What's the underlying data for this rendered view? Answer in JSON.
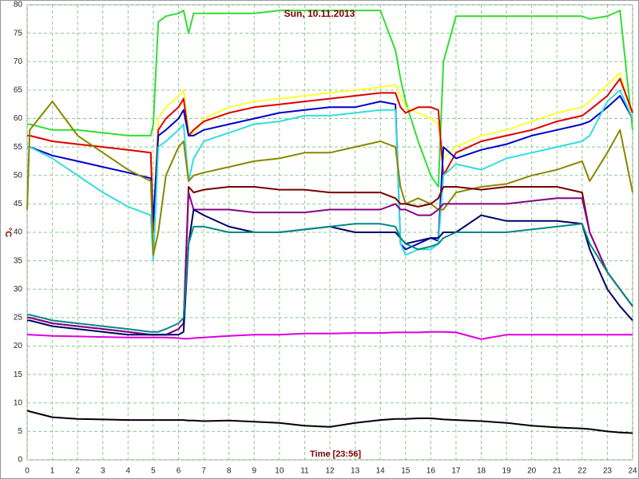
{
  "chart_data": {
    "type": "line",
    "title": "Sun, 10.11.2013",
    "xlabel": "Time [23:56]",
    "ylabel": "°C",
    "xlim": [
      0,
      24
    ],
    "ylim": [
      0,
      80
    ],
    "xticks": [
      0,
      1,
      2,
      3,
      4,
      5,
      6,
      7,
      8,
      9,
      10,
      11,
      12,
      13,
      14,
      15,
      16,
      17,
      18,
      19,
      20,
      21,
      22,
      23,
      24
    ],
    "yticks": [
      0,
      5,
      10,
      15,
      20,
      25,
      30,
      35,
      40,
      45,
      50,
      55,
      60,
      65,
      70,
      75,
      80
    ],
    "grid": true,
    "grid_color": "#8fc88f",
    "x": [
      0,
      0.1,
      1,
      2,
      3,
      4,
      4.9,
      5,
      5.2,
      5.5,
      6,
      6.2,
      6.4,
      6.6,
      7,
      8,
      9,
      10,
      11,
      12,
      13,
      14,
      14.6,
      14.8,
      15,
      15.5,
      16,
      16.3,
      16.5,
      17,
      18,
      19,
      20,
      21,
      22,
      22.3,
      23,
      23.5,
      24
    ],
    "series": [
      {
        "color": "#33dd33",
        "values": [
          59,
          59,
          58,
          58,
          57.5,
          57,
          57,
          59,
          77,
          78,
          78.5,
          79,
          75,
          78.5,
          78.5,
          78.5,
          78.5,
          79,
          79,
          79,
          79,
          79,
          72,
          67,
          63,
          56,
          50,
          48,
          70,
          78,
          78,
          78,
          78,
          78,
          78,
          77.5,
          78,
          79,
          58
        ]
      },
      {
        "color": "#ffff33",
        "values": [
          57,
          57,
          56,
          55.5,
          55,
          54.5,
          54,
          42,
          60,
          62,
          64,
          65,
          58,
          57,
          60,
          62,
          63,
          63.5,
          64,
          64.5,
          65,
          65.5,
          66,
          64,
          62,
          61,
          60,
          59,
          53,
          55,
          57,
          58,
          59.5,
          61,
          62,
          63,
          66,
          68,
          60
        ]
      },
      {
        "color": "#dd0000",
        "values": [
          57,
          57,
          56,
          55.5,
          55,
          54.5,
          54,
          40,
          58,
          60,
          62,
          63.5,
          57,
          58,
          59.5,
          61,
          62,
          62.5,
          63,
          63.5,
          64,
          64.5,
          64.5,
          62,
          61,
          62,
          62,
          61.5,
          50,
          54,
          56,
          57,
          58,
          59.5,
          60.5,
          61.5,
          64,
          67,
          61
        ]
      },
      {
        "color": "#0000cc",
        "values": [
          55,
          55,
          53.5,
          52.5,
          51.5,
          50.5,
          49.5,
          42,
          57,
          58,
          60,
          61.5,
          57,
          57,
          58,
          59,
          60,
          61,
          61.5,
          62,
          62,
          63,
          62.5,
          38,
          37,
          38,
          39,
          38.5,
          55,
          53,
          54.5,
          55.5,
          57,
          58,
          59,
          59.5,
          62,
          64,
          60
        ]
      },
      {
        "color": "#33dddd",
        "values": [
          55,
          55,
          53,
          50,
          47,
          44.5,
          43,
          35,
          55,
          56,
          58,
          59,
          49,
          53,
          56,
          57.5,
          59,
          59.5,
          60.5,
          60.5,
          61,
          61.5,
          61.5,
          38,
          36,
          37,
          37,
          38,
          50,
          52,
          51,
          53,
          54,
          55,
          56,
          57,
          63,
          65,
          60
        ]
      },
      {
        "color": "#888800",
        "values": [
          44,
          58,
          63,
          57,
          54,
          51,
          49,
          36,
          40,
          50,
          55,
          56,
          49,
          50,
          50.5,
          51.5,
          52.5,
          53,
          54,
          54,
          55,
          56,
          55,
          48,
          45,
          46,
          45,
          44,
          44,
          47,
          48,
          48.5,
          50,
          51,
          52.5,
          49,
          54,
          58,
          47
        ]
      },
      {
        "color": "#770000",
        "values": [
          25,
          25,
          24,
          23.5,
          23,
          22.5,
          22,
          22,
          22,
          22,
          23,
          24,
          48,
          47,
          47.5,
          48,
          48,
          47.5,
          47.5,
          47,
          47,
          47,
          46,
          45,
          45,
          44.5,
          45,
          46,
          48,
          48,
          47.5,
          48,
          48,
          48,
          47,
          40,
          33,
          30,
          27
        ]
      },
      {
        "color": "#880088",
        "values": [
          25,
          25,
          24,
          23.5,
          23,
          22.5,
          22,
          22,
          22,
          22,
          23,
          24,
          47,
          44,
          44,
          44,
          43.5,
          43.5,
          43.5,
          44,
          44,
          44,
          45,
          44,
          44,
          43,
          43,
          44,
          45,
          45,
          45,
          45,
          45.5,
          46,
          46,
          40,
          33,
          30,
          27
        ]
      },
      {
        "color": "#000066",
        "values": [
          24.5,
          24.5,
          23.5,
          23,
          22.5,
          22,
          22,
          22,
          22,
          22,
          22,
          22.5,
          38,
          44,
          43,
          41,
          40,
          40,
          40.5,
          41,
          40,
          40,
          40,
          39,
          38,
          38.5,
          39,
          39,
          40,
          40,
          43,
          42,
          42,
          42,
          41.5,
          37,
          30,
          27,
          24.5
        ]
      },
      {
        "color": "#008888",
        "values": [
          25.5,
          25.5,
          24.5,
          24,
          23.5,
          23,
          22.5,
          22.5,
          22.5,
          23,
          24,
          25,
          38,
          41,
          41,
          40,
          40,
          40,
          40.5,
          41,
          41.5,
          41.5,
          41,
          39,
          38,
          37,
          37.5,
          38,
          39,
          40,
          40,
          40,
          40.5,
          41,
          41.5,
          38,
          33,
          30,
          27
        ]
      },
      {
        "color": "#dd00dd",
        "values": [
          22,
          22,
          21.8,
          21.7,
          21.6,
          21.5,
          21.5,
          21.5,
          21.5,
          21.5,
          21.4,
          21.3,
          21.3,
          21.4,
          21.5,
          21.8,
          22,
          22,
          22.2,
          22.2,
          22.3,
          22.3,
          22.4,
          22.4,
          22.4,
          22.4,
          22.5,
          22.5,
          22.5,
          22.4,
          21.2,
          22,
          22,
          22,
          22,
          22,
          22,
          22,
          22
        ]
      },
      {
        "color": "#000000",
        "values": [
          8.7,
          8.5,
          7.5,
          7.2,
          7.1,
          7,
          7,
          7,
          7,
          7,
          7,
          7,
          6.9,
          6.9,
          6.8,
          6.9,
          6.7,
          6.5,
          6,
          5.8,
          6.5,
          7,
          7.2,
          7.2,
          7.2,
          7.3,
          7.3,
          7.2,
          7.1,
          7,
          6.8,
          6.5,
          6,
          5.7,
          5.5,
          5.4,
          5,
          4.8,
          4.7
        ]
      }
    ]
  }
}
